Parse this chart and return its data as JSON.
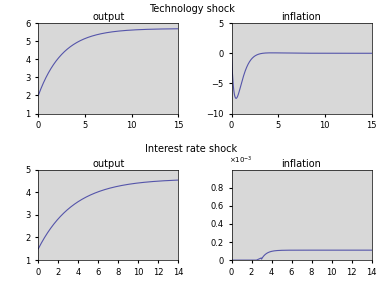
{
  "title_top": "Technology shock",
  "title_bottom": "Interest rate shock",
  "line_color": "#5555aa",
  "axes_bg_color": "#d8d8d8",
  "fig_bg_color": "#ffffff",
  "top_left": {
    "title": "output",
    "xlim": [
      0,
      15
    ],
    "ylim": [
      1,
      6
    ],
    "yticks": [
      1,
      2,
      3,
      4,
      5,
      6
    ],
    "xticks": [
      0,
      5,
      10,
      15
    ]
  },
  "top_right": {
    "title": "inflation",
    "xlim": [
      0,
      15
    ],
    "ylim": [
      -10,
      5
    ],
    "yticks": [
      -10,
      -5,
      0,
      5
    ],
    "xticks": [
      0,
      5,
      10,
      15
    ]
  },
  "bottom_left": {
    "title": "output",
    "xlim": [
      0,
      14
    ],
    "ylim": [
      1,
      5
    ],
    "yticks": [
      1,
      2,
      3,
      4,
      5
    ],
    "xticks": [
      0,
      2,
      4,
      6,
      8,
      10,
      12,
      14
    ]
  },
  "bottom_right": {
    "title": "inflation",
    "xlim": [
      0,
      14
    ],
    "ylim": [
      0,
      0.001
    ],
    "yticks": [
      0,
      0.0002,
      0.0004,
      0.0006,
      0.0008
    ],
    "ytick_labels": [
      "0",
      "0.2",
      "0.4",
      "0.6",
      "0.8"
    ],
    "xticks": [
      0,
      2,
      4,
      6,
      8,
      10,
      12,
      14
    ]
  }
}
